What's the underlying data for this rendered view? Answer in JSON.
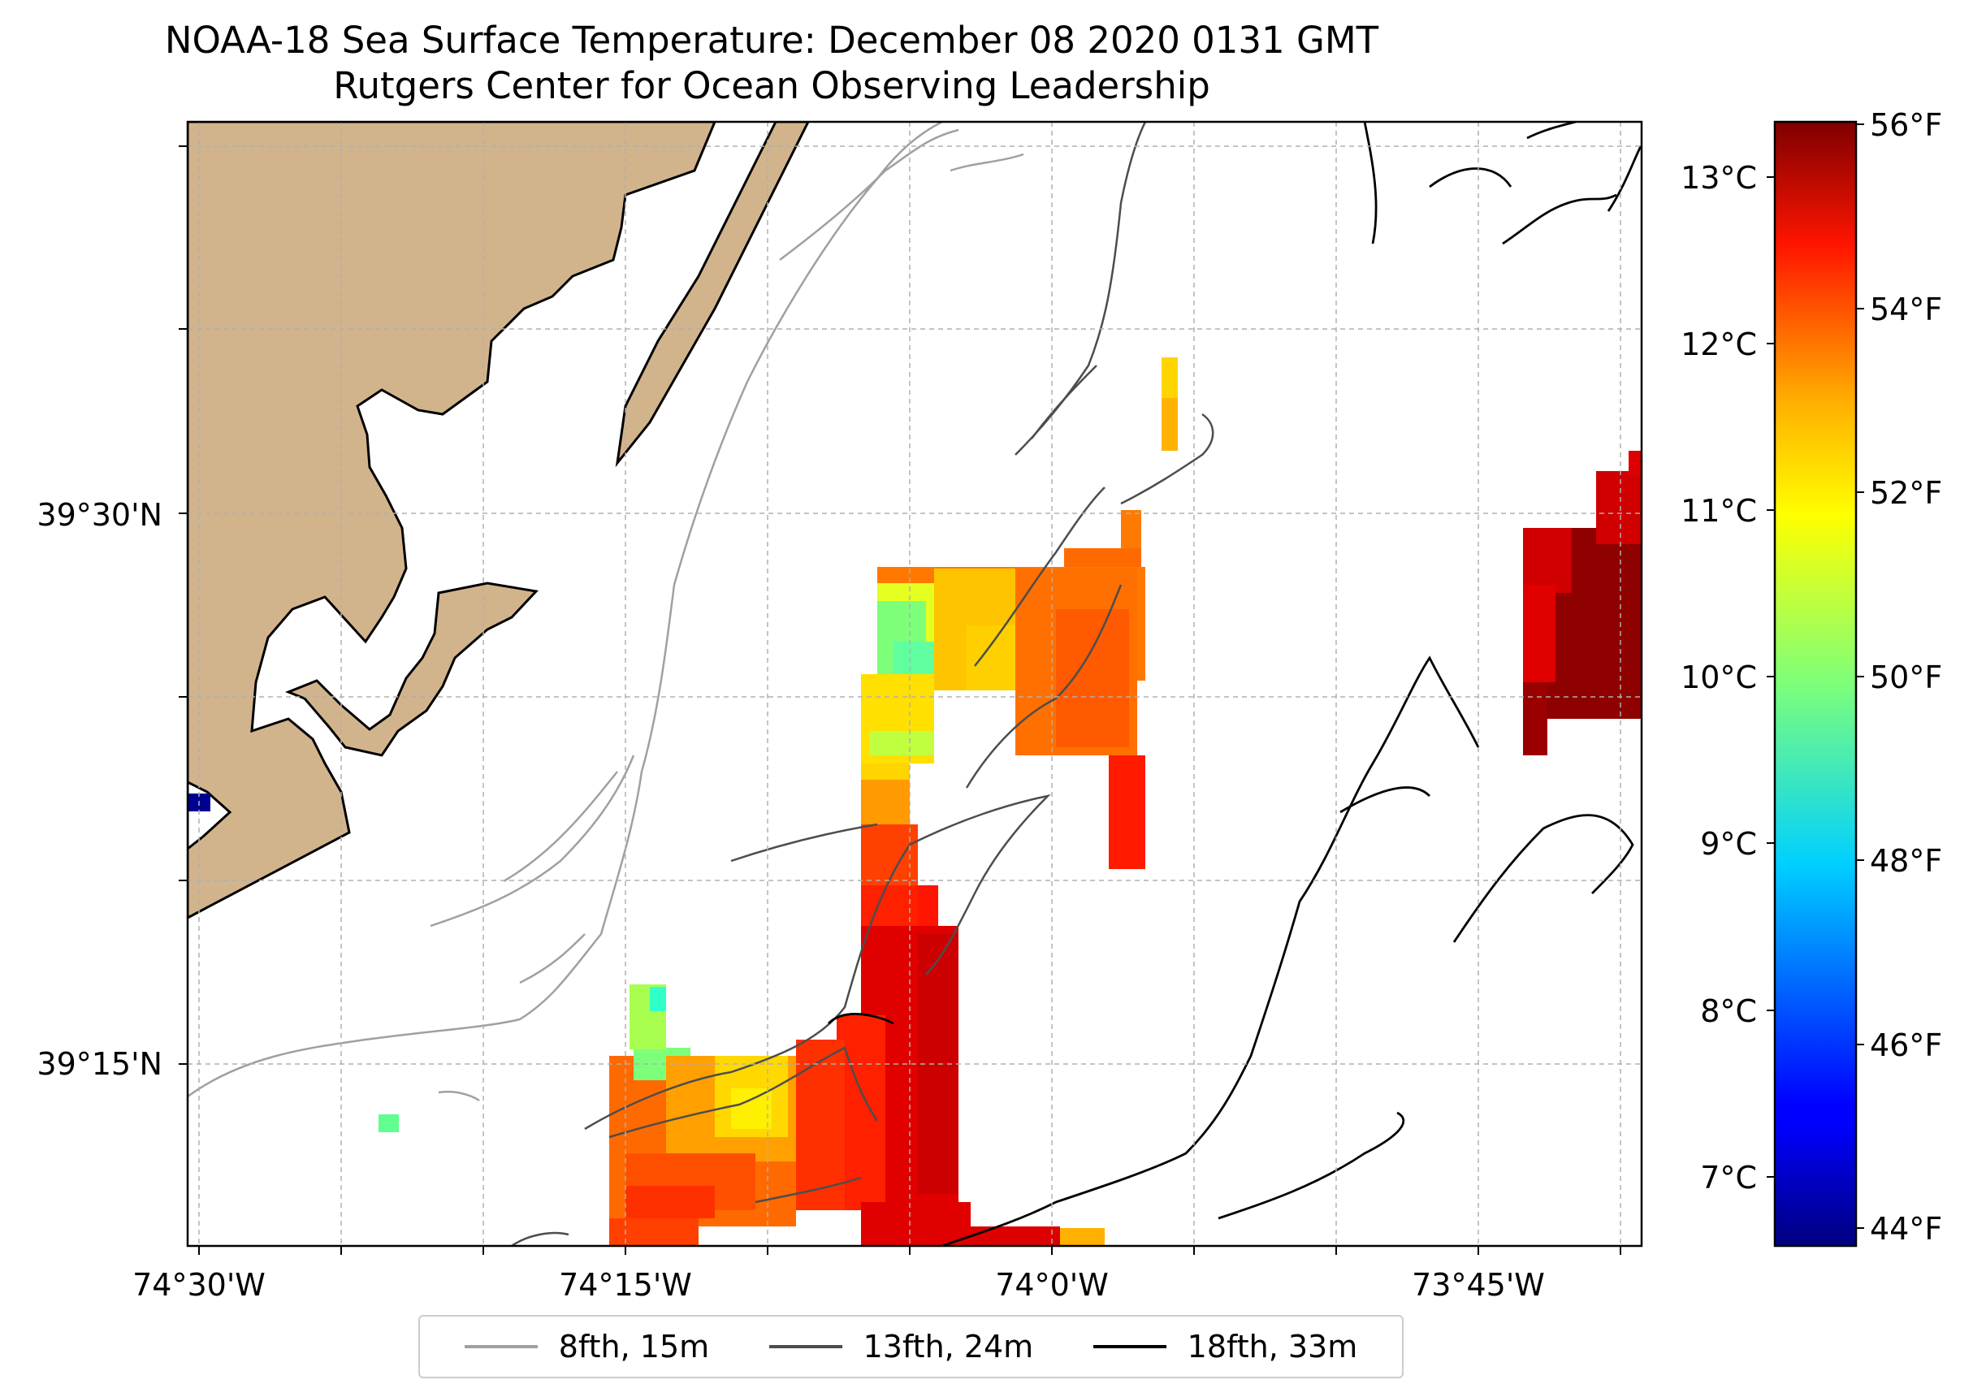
{
  "title": "NOAA-18 Sea Surface Temperature: December 08 2020 0131 GMT",
  "subtitle": "Rutgers Center for Ocean Observing Leadership",
  "map": {
    "lon_labels": [
      "74°30'W",
      "74°15'W",
      "74°0'W",
      "73°45'W"
    ],
    "lat_labels": [
      "39°30'N",
      "39°15'N"
    ],
    "gridlines": true,
    "land_color": "#d2b48c",
    "sst_missing": "white"
  },
  "colorbar": {
    "colormap": "jet",
    "celsius_labels": [
      "13°C",
      "12°C",
      "11°C",
      "10°C",
      "9°C",
      "8°C",
      "7°C"
    ],
    "fahrenheit_labels": [
      "56°F",
      "54°F",
      "52°F",
      "50°F",
      "48°F",
      "46°F",
      "44°F"
    ],
    "fahrenheit_range": [
      43.8,
      56.2
    ]
  },
  "legend": {
    "items": [
      {
        "label": "8fth, 15m",
        "color": "#a0a0a0"
      },
      {
        "label": "13fth, 24m",
        "color": "#4d4d4d"
      },
      {
        "label": "18fth, 33m",
        "color": "#000000"
      }
    ]
  }
}
